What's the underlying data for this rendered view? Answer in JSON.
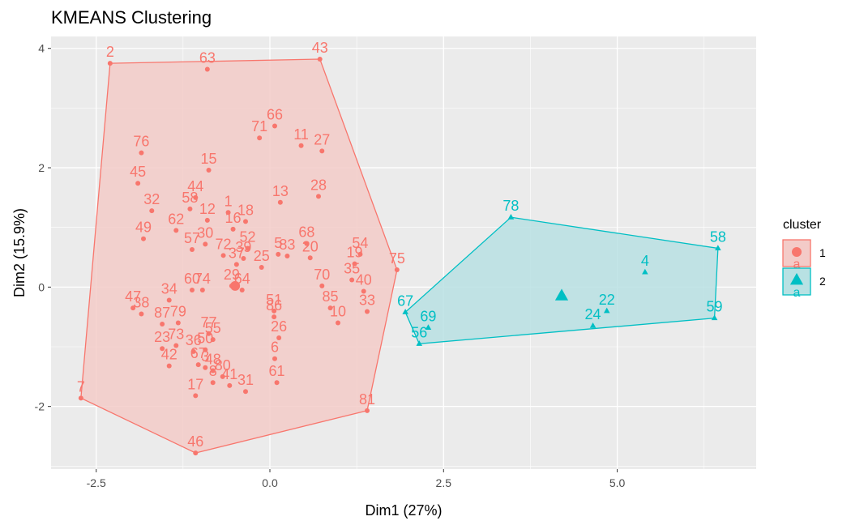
{
  "chart_data": {
    "type": "scatter",
    "title": "KMEANS Clustering",
    "xlabel": "Dim1 (27%)",
    "ylabel": "Dim2 (15.9%)",
    "xlim": [
      -3.15,
      7.0
    ],
    "ylim": [
      -3.05,
      4.2
    ],
    "xticks": [
      -2.5,
      0.0,
      2.5,
      5.0
    ],
    "xtick_labels": [
      "-2.5",
      "0.0",
      "2.5",
      "5.0"
    ],
    "yticks": [
      -2,
      0,
      2,
      4
    ],
    "ytick_labels": [
      "-2",
      "0",
      "2",
      "4"
    ],
    "grid": true,
    "legend": {
      "title": "cluster",
      "position": "right",
      "entries": [
        {
          "label": "1",
          "key_letter": "a",
          "color": "#F8766D",
          "fill": "#F3CBC8",
          "shape": "circle"
        },
        {
          "label": "2",
          "key_letter": "a",
          "color": "#00BFC4",
          "fill": "#B8E1E3",
          "shape": "triangle"
        }
      ]
    },
    "clusters": [
      {
        "name": "1",
        "color": "#F8766D",
        "shape": "circle",
        "center": [
          -0.5,
          0.02
        ],
        "hull": [
          [
            -2.3,
            3.75
          ],
          [
            0.72,
            3.82
          ],
          [
            1.83,
            0.29
          ],
          [
            1.4,
            -2.07
          ],
          [
            -1.07,
            -2.78
          ],
          [
            -2.72,
            -1.86
          ]
        ],
        "points": [
          {
            "id": "2",
            "x": -2.3,
            "y": 3.75
          },
          {
            "id": "43",
            "x": 0.72,
            "y": 3.82
          },
          {
            "id": "63",
            "x": -0.9,
            "y": 3.65
          },
          {
            "id": "66",
            "x": 0.07,
            "y": 2.7
          },
          {
            "id": "71",
            "x": -0.15,
            "y": 2.5
          },
          {
            "id": "11",
            "x": 0.45,
            "y": 2.37
          },
          {
            "id": "27",
            "x": 0.75,
            "y": 2.28
          },
          {
            "id": "76",
            "x": -1.85,
            "y": 2.25
          },
          {
            "id": "15",
            "x": -0.88,
            "y": 1.96
          },
          {
            "id": "45",
            "x": -1.9,
            "y": 1.74
          },
          {
            "id": "28",
            "x": 0.7,
            "y": 1.52
          },
          {
            "id": "13",
            "x": 0.15,
            "y": 1.42
          },
          {
            "id": "44",
            "x": -1.07,
            "y": 1.5
          },
          {
            "id": "1",
            "x": -0.6,
            "y": 1.25
          },
          {
            "id": "58",
            "x": -1.15,
            "y": 1.31
          },
          {
            "id": "32",
            "x": -1.7,
            "y": 1.28
          },
          {
            "id": "12",
            "x": -0.9,
            "y": 1.12
          },
          {
            "id": "18",
            "x": -0.35,
            "y": 1.1
          },
          {
            "id": "62",
            "x": -1.35,
            "y": 0.95
          },
          {
            "id": "16",
            "x": -0.53,
            "y": 0.97
          },
          {
            "id": "49",
            "x": -1.82,
            "y": 0.81
          },
          {
            "id": "68",
            "x": 0.53,
            "y": 0.73
          },
          {
            "id": "30",
            "x": -0.93,
            "y": 0.72
          },
          {
            "id": "52",
            "x": -0.32,
            "y": 0.65
          },
          {
            "id": "57",
            "x": -1.12,
            "y": 0.63
          },
          {
            "id": "5",
            "x": 0.12,
            "y": 0.55
          },
          {
            "id": "72",
            "x": -0.67,
            "y": 0.53
          },
          {
            "id": "39",
            "x": -0.38,
            "y": 0.48
          },
          {
            "id": "83",
            "x": 0.25,
            "y": 0.52
          },
          {
            "id": "54",
            "x": 1.3,
            "y": 0.55
          },
          {
            "id": "20",
            "x": 0.58,
            "y": 0.49
          },
          {
            "id": "19",
            "x": 1.22,
            "y": 0.39
          },
          {
            "id": "75",
            "x": 1.83,
            "y": 0.29
          },
          {
            "id": "37",
            "x": -0.48,
            "y": 0.38
          },
          {
            "id": "25",
            "x": -0.12,
            "y": 0.33
          },
          {
            "id": "29",
            "x": -0.55,
            "y": 0.02
          },
          {
            "id": "64",
            "x": -0.4,
            "y": -0.05
          },
          {
            "id": "60",
            "x": -1.12,
            "y": -0.05
          },
          {
            "id": "74",
            "x": -0.97,
            "y": -0.05
          },
          {
            "id": "35",
            "x": 1.18,
            "y": 0.12
          },
          {
            "id": "70",
            "x": 0.75,
            "y": 0.02
          },
          {
            "id": "40",
            "x": 1.35,
            "y": -0.07
          },
          {
            "id": "34",
            "x": -1.45,
            "y": -0.22
          },
          {
            "id": "47",
            "x": -1.97,
            "y": -0.35
          },
          {
            "id": "38",
            "x": -1.85,
            "y": -0.45
          },
          {
            "id": "85",
            "x": 0.87,
            "y": -0.35
          },
          {
            "id": "33",
            "x": 1.4,
            "y": -0.41
          },
          {
            "id": "51",
            "x": 0.06,
            "y": -0.4
          },
          {
            "id": "86",
            "x": 0.06,
            "y": -0.5
          },
          {
            "id": "87",
            "x": -1.55,
            "y": -0.62
          },
          {
            "id": "79",
            "x": -1.32,
            "y": -0.6
          },
          {
            "id": "10",
            "x": 0.98,
            "y": -0.6
          },
          {
            "id": "77",
            "x": -0.88,
            "y": -0.78
          },
          {
            "id": "55",
            "x": -0.82,
            "y": -0.88
          },
          {
            "id": "26",
            "x": 0.13,
            "y": -0.85
          },
          {
            "id": "73",
            "x": -1.35,
            "y": -0.98
          },
          {
            "id": "23",
            "x": -1.55,
            "y": -1.03
          },
          {
            "id": "36",
            "x": -1.1,
            "y": -1.08
          },
          {
            "id": "50",
            "x": -0.93,
            "y": -1.05
          },
          {
            "id": "6",
            "x": 0.07,
            "y": -1.2
          },
          {
            "id": "42",
            "x": -1.45,
            "y": -1.32
          },
          {
            "id": "67",
            "x": -1.03,
            "y": -1.3
          },
          {
            "id": "3",
            "x": -0.93,
            "y": -1.35
          },
          {
            "id": "48",
            "x": -0.82,
            "y": -1.4
          },
          {
            "id": "80",
            "x": -0.68,
            "y": -1.5
          },
          {
            "id": "8",
            "x": -0.82,
            "y": -1.6
          },
          {
            "id": "61",
            "x": 0.1,
            "y": -1.6
          },
          {
            "id": "41",
            "x": -0.58,
            "y": -1.65
          },
          {
            "id": "31",
            "x": -0.35,
            "y": -1.75
          },
          {
            "id": "17",
            "x": -1.07,
            "y": -1.82
          },
          {
            "id": "81",
            "x": 1.4,
            "y": -2.07
          },
          {
            "id": "7",
            "x": -2.72,
            "y": -1.86
          },
          {
            "id": "46",
            "x": -1.07,
            "y": -2.78
          }
        ]
      },
      {
        "name": "2",
        "color": "#00BFC4",
        "shape": "triangle",
        "center": [
          4.2,
          -0.15
        ],
        "hull": [
          [
            3.47,
            1.17
          ],
          [
            6.45,
            0.65
          ],
          [
            6.4,
            -0.52
          ],
          [
            2.15,
            -0.95
          ],
          [
            1.95,
            -0.42
          ]
        ],
        "points": [
          {
            "id": "78",
            "x": 3.47,
            "y": 1.17
          },
          {
            "id": "58",
            "x": 6.45,
            "y": 0.65
          },
          {
            "id": "4",
            "x": 5.4,
            "y": 0.25
          },
          {
            "id": "22",
            "x": 4.85,
            "y": -0.4
          },
          {
            "id": "24",
            "x": 4.65,
            "y": -0.65
          },
          {
            "id": "59",
            "x": 6.4,
            "y": -0.52
          },
          {
            "id": "67",
            "x": 1.95,
            "y": -0.42
          },
          {
            "id": "69",
            "x": 2.28,
            "y": -0.68
          },
          {
            "id": "56",
            "x": 2.15,
            "y": -0.95
          }
        ]
      }
    ]
  }
}
